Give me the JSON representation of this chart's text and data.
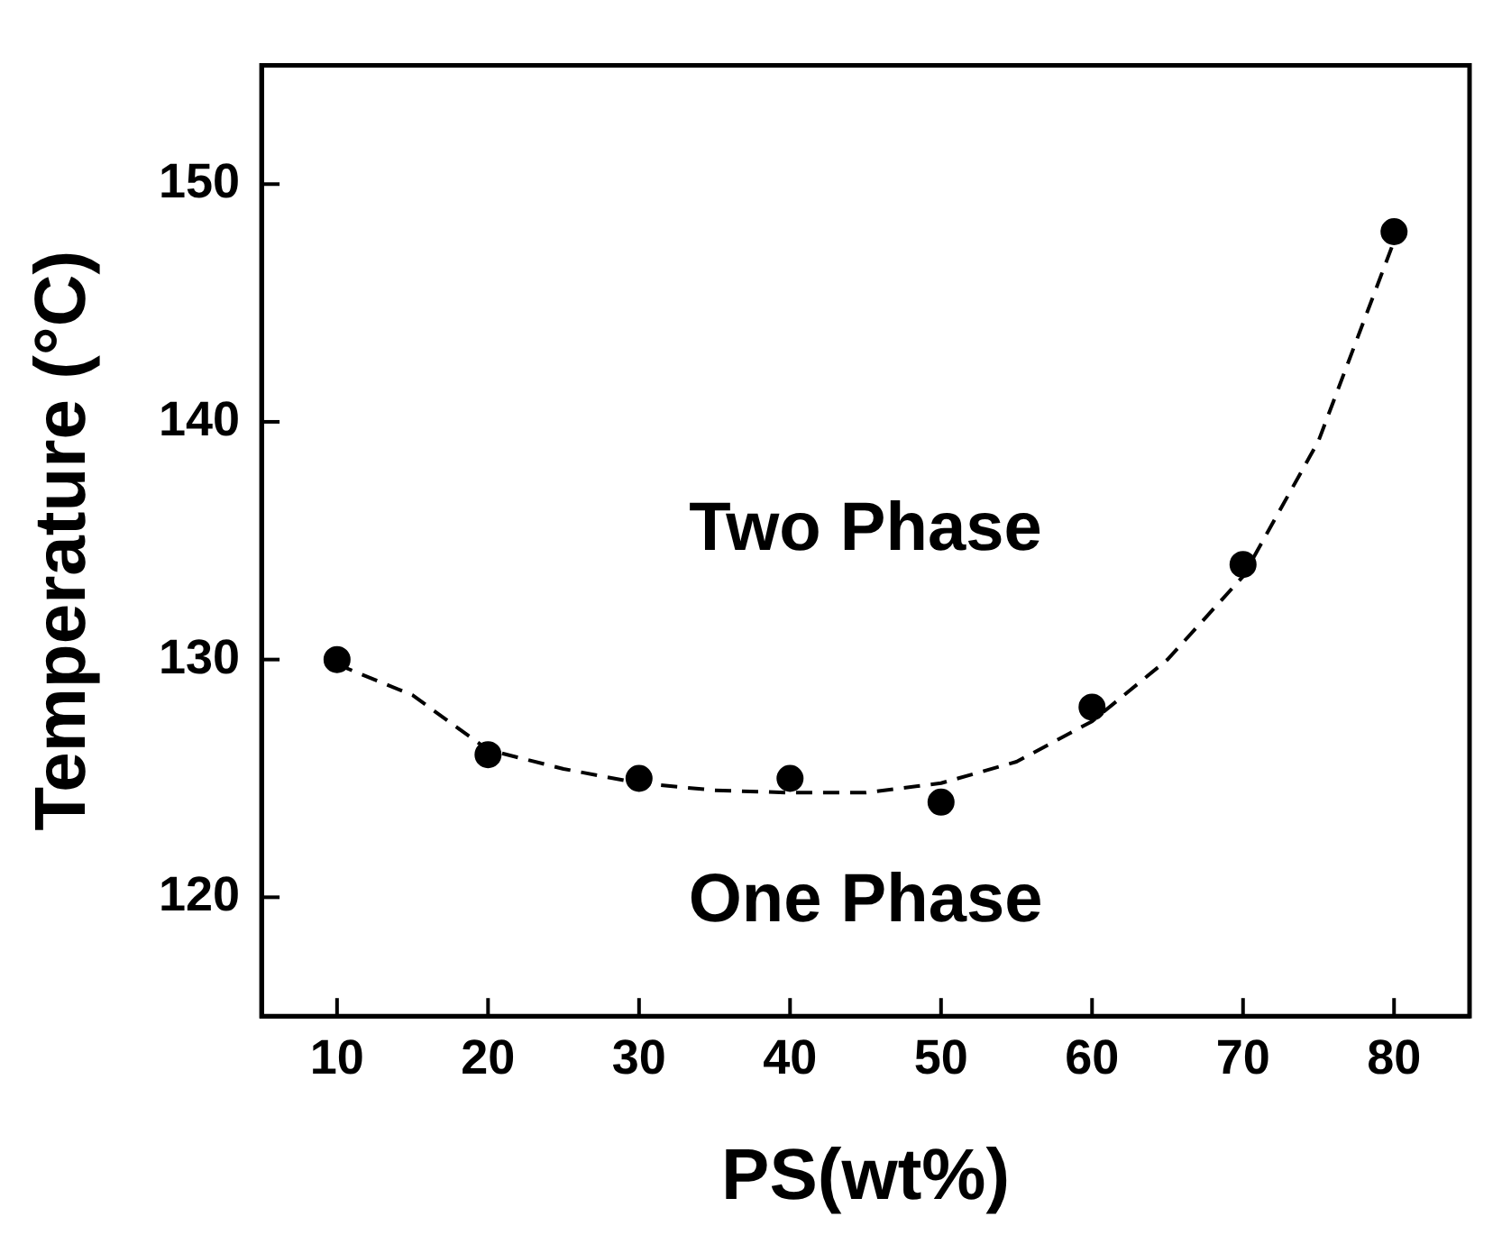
{
  "chart_data": {
    "type": "scatter",
    "xlabel": "PS(wt%)",
    "ylabel": "Temperature (°C)",
    "xlim": [
      5,
      85
    ],
    "xticks": [
      10,
      20,
      30,
      40,
      50,
      60,
      70,
      80
    ],
    "ylim": [
      115,
      155
    ],
    "yticks": [
      120,
      130,
      140,
      150
    ],
    "grid": false,
    "legend": false,
    "marker": "circle",
    "series": [
      {
        "type": "scatter",
        "color": "#000000",
        "x": [
          10,
          20,
          30,
          40,
          50,
          60,
          70,
          80
        ],
        "values": [
          130,
          126,
          125,
          125,
          124,
          128,
          134,
          148
        ]
      },
      {
        "type": "line",
        "color": "#000000",
        "marker": "none",
        "line_style": "dashed",
        "x": [
          10,
          15,
          20,
          25,
          30,
          35,
          40,
          45,
          50,
          55,
          60,
          65,
          70,
          75,
          80
        ],
        "values": [
          129.8,
          128.5,
          126.2,
          125.4,
          124.8,
          124.5,
          124.4,
          124.4,
          124.8,
          125.7,
          127.4,
          130,
          133.5,
          139.2,
          147.6
        ]
      }
    ],
    "annotations": [
      "Two Phase",
      "One Phase"
    ]
  }
}
